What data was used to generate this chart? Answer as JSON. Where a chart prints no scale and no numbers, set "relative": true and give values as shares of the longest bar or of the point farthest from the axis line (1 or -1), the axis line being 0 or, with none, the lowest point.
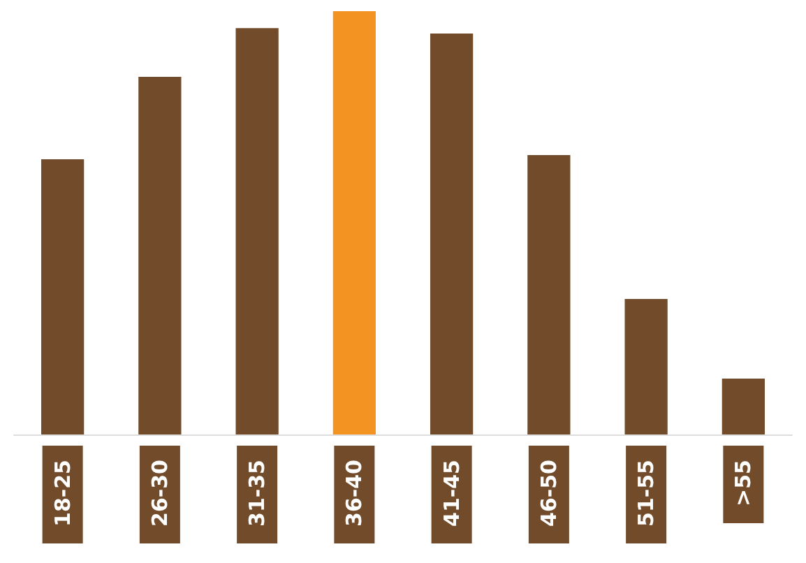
{
  "chart_data": {
    "type": "bar",
    "relative": true,
    "categories": [
      "18-25",
      "26-30",
      "31-35",
      "36-40",
      "41-45",
      "46-50",
      "51-55",
      ">55"
    ],
    "values": [
      0.65,
      0.845,
      0.96,
      1,
      0.947,
      0.66,
      0.32,
      0.132
    ],
    "colors": [
      "#714b2a",
      "#714b2a",
      "#714b2a",
      "#f39322",
      "#714b2a",
      "#714b2a",
      "#714b2a",
      "#714b2a"
    ]
  }
}
